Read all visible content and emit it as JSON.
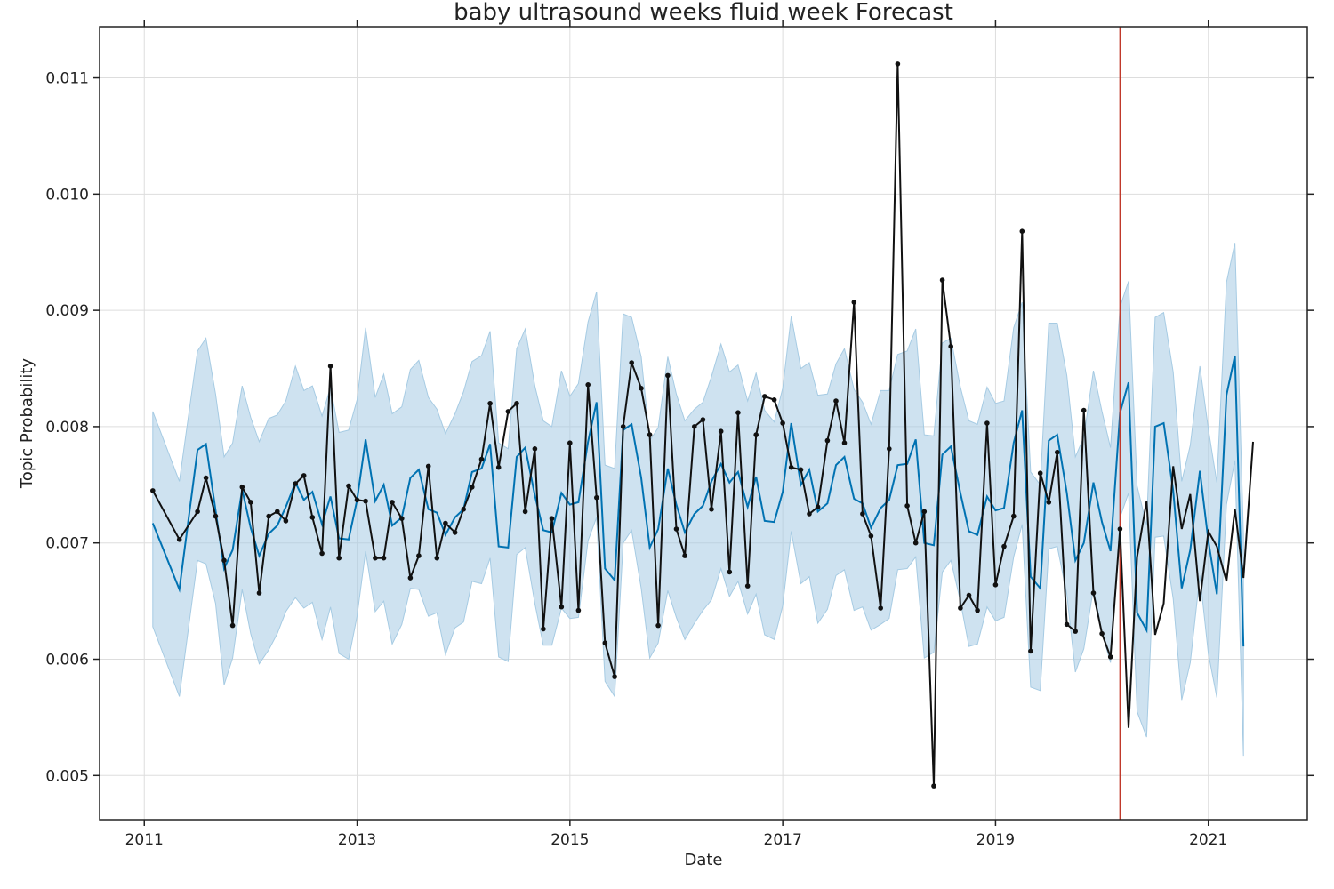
{
  "chart_data": {
    "type": "line",
    "title": "baby ultrasound weeks fluid week Forecast",
    "xlabel": "Date",
    "ylabel": "Topic Probability",
    "xlim": [
      2010.58,
      2021.93
    ],
    "ylim": [
      0.00462,
      0.01144
    ],
    "x_ticks": [
      2011,
      2013,
      2015,
      2017,
      2019,
      2021
    ],
    "x_tick_labels": [
      "2011",
      "2013",
      "2015",
      "2017",
      "2019",
      "2021"
    ],
    "y_ticks": [
      0.005,
      0.006,
      0.007,
      0.008,
      0.009,
      0.01,
      0.011
    ],
    "y_tick_labels": [
      "0.005",
      "0.006",
      "0.007",
      "0.008",
      "0.009",
      "0.010",
      "0.011"
    ],
    "grid": true,
    "changepoint_x": 2020.17,
    "colors": {
      "actual": "#111111",
      "forecast": "#0072b2",
      "interval": "#a6cbe3",
      "changepoint": "#c0392b",
      "grid": "#dddddd"
    },
    "series": [
      {
        "name": "actual",
        "x": [
          2011.08,
          2011.33,
          2011.5,
          2011.58,
          2011.67,
          2011.75,
          2011.83,
          2011.92,
          2012.0,
          2012.08,
          2012.17,
          2012.25,
          2012.33,
          2012.42,
          2012.5,
          2012.58,
          2012.67,
          2012.75,
          2012.83,
          2012.92,
          2013.0,
          2013.08,
          2013.17,
          2013.25,
          2013.33,
          2013.42,
          2013.5,
          2013.58,
          2013.67,
          2013.75,
          2013.83,
          2013.92,
          2014.0,
          2014.08,
          2014.17,
          2014.25,
          2014.33,
          2014.42,
          2014.5,
          2014.58,
          2014.67,
          2014.75,
          2014.83,
          2014.92,
          2015.0,
          2015.08,
          2015.17,
          2015.25,
          2015.33,
          2015.42,
          2015.5,
          2015.58,
          2015.67,
          2015.75,
          2015.83,
          2015.92,
          2016.0,
          2016.08,
          2016.17,
          2016.25,
          2016.33,
          2016.42,
          2016.5,
          2016.58,
          2016.67,
          2016.75,
          2016.83,
          2016.92,
          2017.0,
          2017.08,
          2017.17,
          2017.25,
          2017.33,
          2017.42,
          2017.5,
          2017.58,
          2017.67,
          2017.75,
          2017.83,
          2017.92,
          2018.0,
          2018.08,
          2018.17,
          2018.25,
          2018.33,
          2018.42,
          2018.5,
          2018.58,
          2018.67,
          2018.75,
          2018.83,
          2018.92,
          2019.0,
          2019.08,
          2019.17,
          2019.25,
          2019.33,
          2019.42,
          2019.5,
          2019.58,
          2019.67,
          2019.75,
          2019.83,
          2019.92,
          2020.0,
          2020.08,
          2020.17,
          2020.25,
          2020.33,
          2020.42,
          2020.5,
          2020.58,
          2020.67,
          2020.75,
          2020.83,
          2020.92,
          2021.0,
          2021.08,
          2021.17,
          2021.25,
          2021.33,
          2021.42
        ],
        "y": [
          0.00745,
          0.00703,
          0.00727,
          0.00756,
          0.00723,
          0.00685,
          0.00629,
          0.00748,
          0.00735,
          0.00657,
          0.00723,
          0.00727,
          0.00719,
          0.00751,
          0.00758,
          0.00722,
          0.00691,
          0.00852,
          0.00687,
          0.00749,
          0.00737,
          0.00736,
          0.00687,
          0.00687,
          0.00735,
          0.00721,
          0.0067,
          0.00689,
          0.00766,
          0.00687,
          0.00717,
          0.00709,
          0.00729,
          0.00748,
          0.00772,
          0.0082,
          0.00765,
          0.00813,
          0.0082,
          0.00727,
          0.00781,
          0.00626,
          0.00721,
          0.00645,
          0.00786,
          0.00642,
          0.00836,
          0.00739,
          0.00614,
          0.00585,
          0.008,
          0.00855,
          0.00833,
          0.00793,
          0.00629,
          0.00844,
          0.00712,
          0.00689,
          0.008,
          0.00806,
          0.00729,
          0.00796,
          0.00675,
          0.00812,
          0.00663,
          0.00793,
          0.00826,
          0.00823,
          0.00803,
          0.00765,
          0.00763,
          0.00725,
          0.00731,
          0.00788,
          0.00822,
          0.00786,
          0.00907,
          0.00725,
          0.00706,
          0.00644,
          0.00781,
          0.01112,
          0.00732,
          0.007,
          0.00727,
          0.00491,
          0.00926,
          0.00869,
          0.00644,
          0.00655,
          0.00642,
          0.00803,
          0.00664,
          0.00697,
          0.00723,
          0.00968,
          0.00607,
          0.0076,
          0.00735,
          0.00778,
          0.0063,
          0.00624,
          0.00814,
          0.00657,
          0.00622,
          0.00602,
          0.00712,
          0.00541,
          0.00688,
          0.00736,
          0.00621,
          0.00648,
          0.00766,
          0.00712,
          0.00742,
          0.0065,
          0.0071,
          0.00697,
          0.00667,
          0.00729,
          0.0067,
          0.00787
        ],
        "markers_until": 2020.17
      },
      {
        "name": "forecast",
        "x": [
          2011.08,
          2011.33,
          2011.5,
          2011.58,
          2011.67,
          2011.75,
          2011.83,
          2011.92,
          2012.0,
          2012.08,
          2012.17,
          2012.25,
          2012.33,
          2012.42,
          2012.5,
          2012.58,
          2012.67,
          2012.75,
          2012.83,
          2012.92,
          2013.0,
          2013.08,
          2013.17,
          2013.25,
          2013.33,
          2013.42,
          2013.5,
          2013.58,
          2013.67,
          2013.75,
          2013.83,
          2013.92,
          2014.0,
          2014.08,
          2014.17,
          2014.25,
          2014.33,
          2014.42,
          2014.5,
          2014.58,
          2014.67,
          2014.75,
          2014.83,
          2014.92,
          2015.0,
          2015.08,
          2015.17,
          2015.25,
          2015.33,
          2015.42,
          2015.5,
          2015.58,
          2015.67,
          2015.75,
          2015.83,
          2015.92,
          2016.0,
          2016.08,
          2016.17,
          2016.25,
          2016.33,
          2016.42,
          2016.5,
          2016.58,
          2016.67,
          2016.75,
          2016.83,
          2016.92,
          2017.0,
          2017.08,
          2017.17,
          2017.25,
          2017.33,
          2017.42,
          2017.5,
          2017.58,
          2017.67,
          2017.75,
          2017.83,
          2017.92,
          2018.0,
          2018.08,
          2018.17,
          2018.25,
          2018.33,
          2018.42,
          2018.5,
          2018.58,
          2018.67,
          2018.75,
          2018.83,
          2018.92,
          2019.0,
          2019.08,
          2019.17,
          2019.25,
          2019.33,
          2019.42,
          2019.5,
          2019.58,
          2019.67,
          2019.75,
          2019.83,
          2019.92,
          2020.0,
          2020.08,
          2020.17,
          2020.25,
          2020.33,
          2020.42,
          2020.5,
          2020.58,
          2020.67,
          2020.75,
          2020.83,
          2020.92,
          2021.0,
          2021.08,
          2021.17,
          2021.25,
          2021.33
        ],
        "y": [
          0.00717,
          0.0066,
          0.0078,
          0.00785,
          0.00728,
          0.00678,
          0.00694,
          0.00746,
          0.00713,
          0.00689,
          0.00708,
          0.00715,
          0.00731,
          0.00752,
          0.00737,
          0.00744,
          0.00716,
          0.0074,
          0.00704,
          0.00703,
          0.00737,
          0.00789,
          0.00736,
          0.0075,
          0.00715,
          0.00722,
          0.00756,
          0.00763,
          0.00729,
          0.00726,
          0.00707,
          0.00722,
          0.00729,
          0.00761,
          0.00764,
          0.00785,
          0.00697,
          0.00696,
          0.00774,
          0.00782,
          0.00741,
          0.00711,
          0.00709,
          0.00743,
          0.00733,
          0.00735,
          0.00787,
          0.00821,
          0.00678,
          0.00668,
          0.00797,
          0.00802,
          0.00756,
          0.00696,
          0.00712,
          0.00764,
          0.00733,
          0.00709,
          0.00725,
          0.00732,
          0.00753,
          0.00768,
          0.00752,
          0.00761,
          0.00731,
          0.00757,
          0.00719,
          0.00718,
          0.00744,
          0.00803,
          0.0075,
          0.00763,
          0.00727,
          0.00734,
          0.00767,
          0.00774,
          0.00738,
          0.00734,
          0.00713,
          0.0073,
          0.00737,
          0.00767,
          0.00768,
          0.00789,
          0.007,
          0.00698,
          0.00776,
          0.00783,
          0.00743,
          0.0071,
          0.00707,
          0.0074,
          0.00728,
          0.0073,
          0.00786,
          0.00814,
          0.00671,
          0.00661,
          0.00788,
          0.00793,
          0.00743,
          0.00685,
          0.007,
          0.00752,
          0.00718,
          0.00693,
          0.00812,
          0.00838,
          0.0064,
          0.00625,
          0.008,
          0.00803,
          0.00745,
          0.00661,
          0.00694,
          0.00762,
          0.00702,
          0.00656,
          0.00827,
          0.00861,
          0.00611
        ]
      },
      {
        "name": "interval",
        "x": [
          2011.08,
          2011.33,
          2011.5,
          2011.58,
          2011.67,
          2011.75,
          2011.83,
          2011.92,
          2012.0,
          2012.08,
          2012.17,
          2012.25,
          2012.33,
          2012.42,
          2012.5,
          2012.58,
          2012.67,
          2012.75,
          2012.83,
          2012.92,
          2013.0,
          2013.08,
          2013.17,
          2013.25,
          2013.33,
          2013.42,
          2013.5,
          2013.58,
          2013.67,
          2013.75,
          2013.83,
          2013.92,
          2014.0,
          2014.08,
          2014.17,
          2014.25,
          2014.33,
          2014.42,
          2014.5,
          2014.58,
          2014.67,
          2014.75,
          2014.83,
          2014.92,
          2015.0,
          2015.08,
          2015.17,
          2015.25,
          2015.33,
          2015.42,
          2015.5,
          2015.58,
          2015.67,
          2015.75,
          2015.83,
          2015.92,
          2016.0,
          2016.08,
          2016.17,
          2016.25,
          2016.33,
          2016.42,
          2016.5,
          2016.58,
          2016.67,
          2016.75,
          2016.83,
          2016.92,
          2017.0,
          2017.08,
          2017.17,
          2017.25,
          2017.33,
          2017.42,
          2017.5,
          2017.58,
          2017.67,
          2017.75,
          2017.83,
          2017.92,
          2018.0,
          2018.08,
          2018.17,
          2018.25,
          2018.33,
          2018.42,
          2018.5,
          2018.58,
          2018.67,
          2018.75,
          2018.83,
          2018.92,
          2019.0,
          2019.08,
          2019.17,
          2019.25,
          2019.33,
          2019.42,
          2019.5,
          2019.58,
          2019.67,
          2019.75,
          2019.83,
          2019.92,
          2020.0,
          2020.08,
          2020.17,
          2020.25,
          2020.33,
          2020.42,
          2020.5,
          2020.58,
          2020.67,
          2020.75,
          2020.83,
          2020.92,
          2021.0,
          2021.08,
          2021.17,
          2021.25,
          2021.33
        ],
        "lower": [
          0.00628,
          0.00568,
          0.00685,
          0.00682,
          0.00648,
          0.00578,
          0.00601,
          0.0066,
          0.00622,
          0.00596,
          0.00608,
          0.00622,
          0.00641,
          0.00653,
          0.00644,
          0.00649,
          0.00617,
          0.00645,
          0.00605,
          0.006,
          0.00637,
          0.00693,
          0.00641,
          0.0065,
          0.00613,
          0.0063,
          0.00661,
          0.0066,
          0.00637,
          0.0064,
          0.00604,
          0.00627,
          0.00632,
          0.00667,
          0.00665,
          0.00687,
          0.00602,
          0.00598,
          0.0069,
          0.00696,
          0.00648,
          0.00612,
          0.00612,
          0.00644,
          0.00635,
          0.00636,
          0.00702,
          0.00722,
          0.00581,
          0.00568,
          0.007,
          0.00711,
          0.00661,
          0.00601,
          0.00614,
          0.00659,
          0.00636,
          0.00617,
          0.00631,
          0.00642,
          0.00651,
          0.00678,
          0.00654,
          0.00667,
          0.00639,
          0.00656,
          0.00621,
          0.00617,
          0.00646,
          0.0071,
          0.00665,
          0.00671,
          0.00631,
          0.00643,
          0.00672,
          0.00677,
          0.00642,
          0.00645,
          0.00625,
          0.0063,
          0.00635,
          0.00677,
          0.00678,
          0.00688,
          0.00601,
          0.00606,
          0.00675,
          0.00685,
          0.0065,
          0.00611,
          0.00613,
          0.00645,
          0.00633,
          0.00636,
          0.00688,
          0.00716,
          0.00576,
          0.00573,
          0.00695,
          0.00697,
          0.00656,
          0.00589,
          0.00609,
          0.00661,
          0.00623,
          0.00597,
          0.00722,
          0.00743,
          0.00555,
          0.00533,
          0.00705,
          0.00706,
          0.00652,
          0.00565,
          0.00597,
          0.00672,
          0.00605,
          0.00567,
          0.00733,
          0.00771,
          0.00517
        ],
        "upper": [
          0.00813,
          0.00753,
          0.00865,
          0.00876,
          0.00828,
          0.00774,
          0.00786,
          0.00835,
          0.00808,
          0.00787,
          0.00807,
          0.0081,
          0.00822,
          0.00852,
          0.00831,
          0.00835,
          0.00809,
          0.00834,
          0.00795,
          0.00797,
          0.00823,
          0.00885,
          0.00825,
          0.00845,
          0.00811,
          0.00817,
          0.00849,
          0.00857,
          0.00825,
          0.00815,
          0.00794,
          0.00811,
          0.0083,
          0.00856,
          0.00861,
          0.00882,
          0.00786,
          0.00781,
          0.00867,
          0.00884,
          0.00835,
          0.00805,
          0.008,
          0.00848,
          0.00826,
          0.00837,
          0.0089,
          0.00916,
          0.00767,
          0.00764,
          0.00897,
          0.00894,
          0.0086,
          0.00788,
          0.00799,
          0.0086,
          0.00828,
          0.00805,
          0.00815,
          0.00821,
          0.00843,
          0.00871,
          0.00847,
          0.00853,
          0.00822,
          0.00846,
          0.00814,
          0.00804,
          0.00833,
          0.00895,
          0.0085,
          0.00855,
          0.00827,
          0.00828,
          0.00854,
          0.00867,
          0.00832,
          0.00821,
          0.00802,
          0.00831,
          0.00831,
          0.00862,
          0.00865,
          0.00884,
          0.00793,
          0.00792,
          0.00872,
          0.00876,
          0.00834,
          0.00805,
          0.00802,
          0.00834,
          0.0082,
          0.00822,
          0.00885,
          0.00907,
          0.00761,
          0.0075,
          0.00889,
          0.00889,
          0.00844,
          0.00774,
          0.00791,
          0.00848,
          0.00813,
          0.00782,
          0.00903,
          0.00925,
          0.00749,
          0.00715,
          0.00894,
          0.00898,
          0.00847,
          0.00753,
          0.00784,
          0.00852,
          0.00798,
          0.00752,
          0.00924,
          0.00958,
          0.00707
        ]
      }
    ]
  }
}
